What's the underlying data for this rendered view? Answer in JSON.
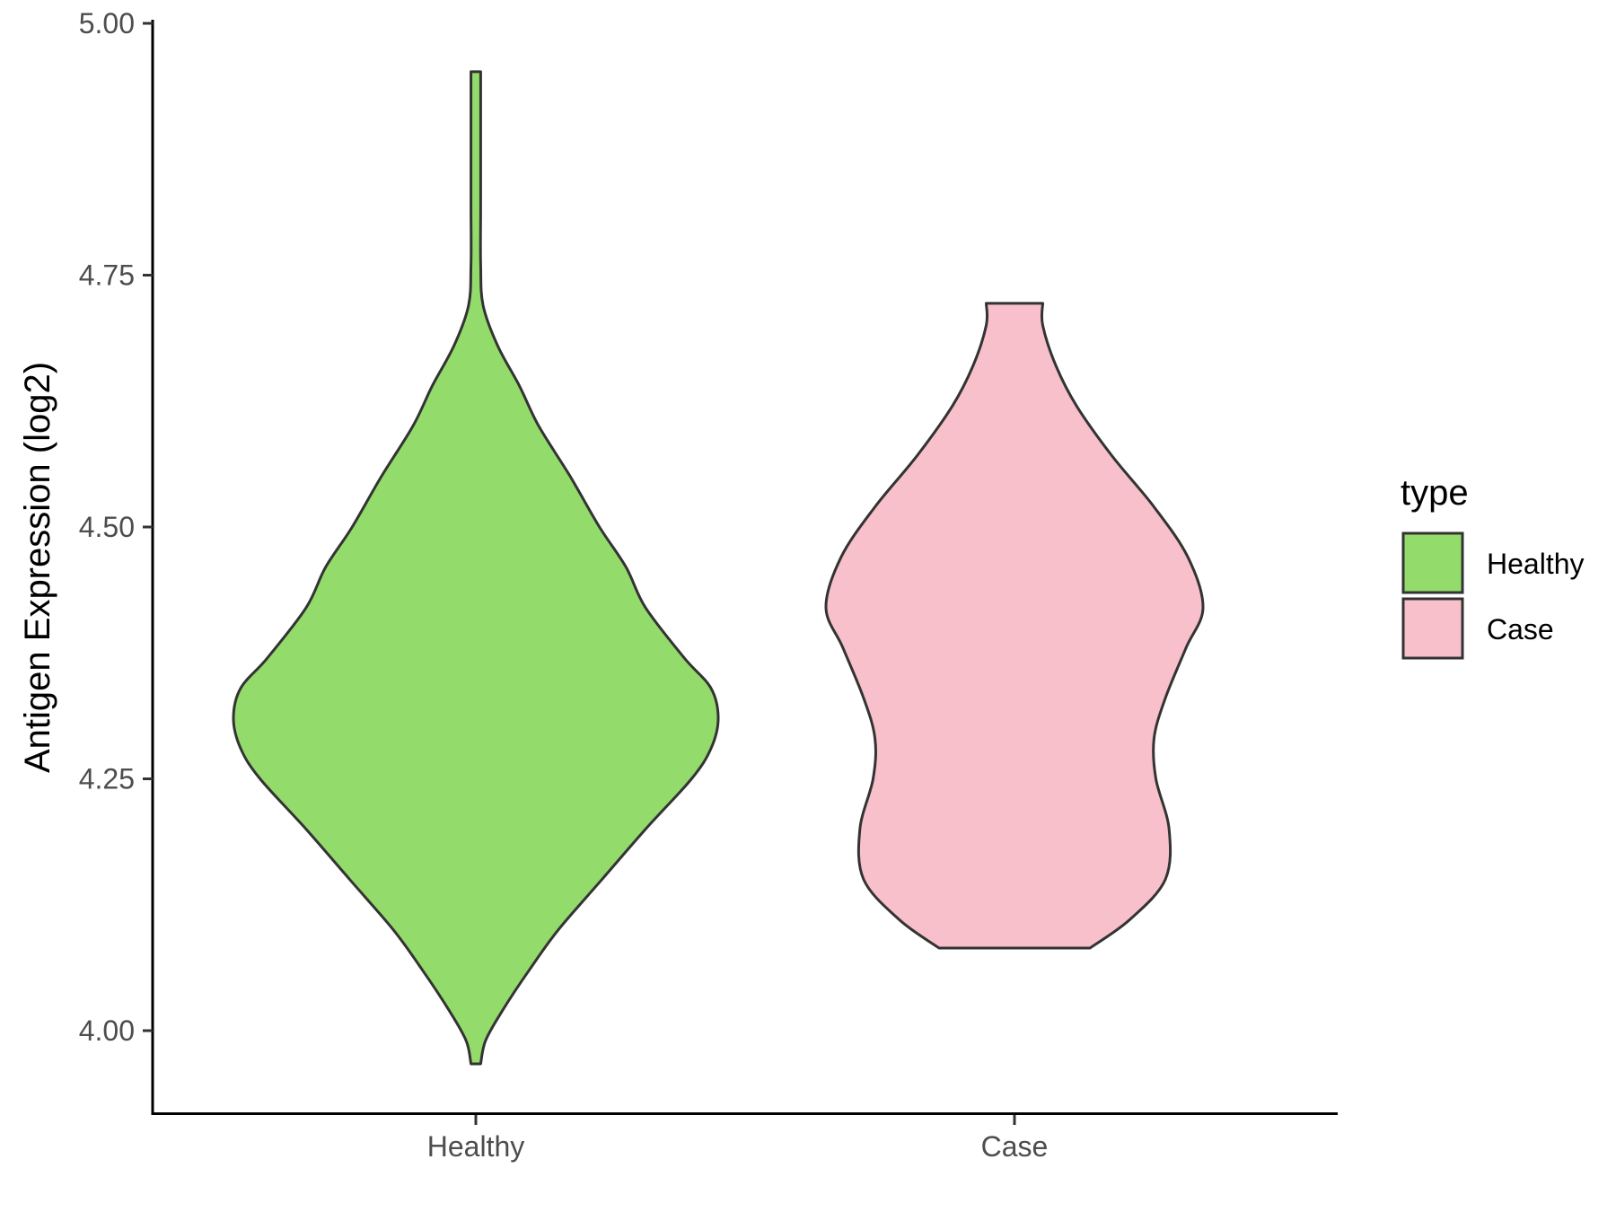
{
  "chart_data": {
    "type": "violin",
    "ylabel": "Antigen Expression (log2)",
    "xlabel": "",
    "ylim": [
      3.92,
      5.0
    ],
    "yticks": [
      "4.00",
      "4.25",
      "4.50",
      "4.75",
      "5.00"
    ],
    "categories": [
      "Healthy",
      "Case"
    ],
    "legend": {
      "title": "type",
      "position": "right"
    },
    "grid": false,
    "series": [
      {
        "name": "Healthy",
        "color": "#93dc6b",
        "range": [
          3.967,
          4.952
        ],
        "density_profile": [
          [
            3.967,
            0.02
          ],
          [
            3.99,
            0.04
          ],
          [
            4.02,
            0.11
          ],
          [
            4.06,
            0.22
          ],
          [
            4.1,
            0.34
          ],
          [
            4.15,
            0.52
          ],
          [
            4.2,
            0.7
          ],
          [
            4.25,
            0.89
          ],
          [
            4.28,
            0.97
          ],
          [
            4.31,
            1.0
          ],
          [
            4.34,
            0.97
          ],
          [
            4.37,
            0.86
          ],
          [
            4.42,
            0.7
          ],
          [
            4.46,
            0.62
          ],
          [
            4.5,
            0.51
          ],
          [
            4.55,
            0.39
          ],
          [
            4.6,
            0.26
          ],
          [
            4.64,
            0.18
          ],
          [
            4.68,
            0.09
          ],
          [
            4.72,
            0.03
          ],
          [
            4.76,
            0.02
          ],
          [
            4.82,
            0.02
          ],
          [
            4.9,
            0.02
          ],
          [
            4.952,
            0.02
          ]
        ]
      },
      {
        "name": "Case",
        "color": "#f7c0cb",
        "range": [
          4.082,
          4.722
        ],
        "density_profile": [
          [
            4.082,
            0.4
          ],
          [
            4.11,
            0.61
          ],
          [
            4.15,
            0.8
          ],
          [
            4.2,
            0.82
          ],
          [
            4.25,
            0.75
          ],
          [
            4.29,
            0.74
          ],
          [
            4.33,
            0.8
          ],
          [
            4.38,
            0.91
          ],
          [
            4.42,
            1.0
          ],
          [
            4.47,
            0.92
          ],
          [
            4.52,
            0.74
          ],
          [
            4.57,
            0.52
          ],
          [
            4.62,
            0.33
          ],
          [
            4.66,
            0.22
          ],
          [
            4.7,
            0.15
          ],
          [
            4.722,
            0.15
          ]
        ]
      }
    ]
  }
}
